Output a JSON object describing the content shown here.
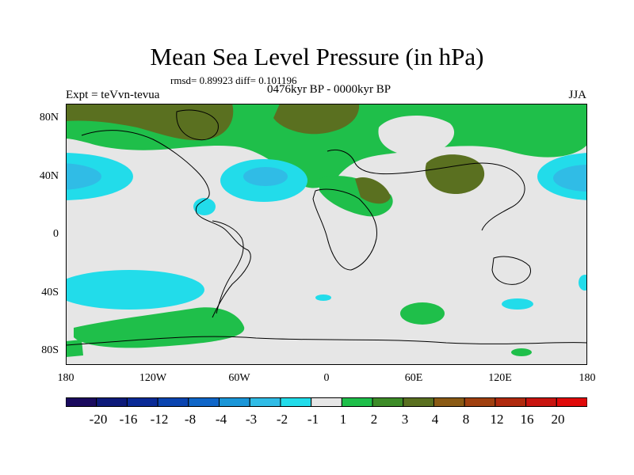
{
  "title": "Mean Sea Level Pressure (in hPa)",
  "stats": "rmsd= 0.89923 diff= 0.101196",
  "period": "0476kyr BP - 0000kyr BP",
  "experiment": "Expt = teVvn-tevua",
  "season": "JJA",
  "lat_labels": [
    "80N",
    "40N",
    "0",
    "40S",
    "80S"
  ],
  "lon_labels": [
    "180",
    "120W",
    "60W",
    "0",
    "60E",
    "120E",
    "180"
  ],
  "colorbar": {
    "labels": [
      "-20",
      "-16",
      "-12",
      "-8",
      "-4",
      "-3",
      "-2",
      "-1",
      "1",
      "2",
      "3",
      "4",
      "8",
      "12",
      "16",
      "20"
    ],
    "colors": [
      "#1a0a5e",
      "#0d1a7a",
      "#0a2a96",
      "#0a44b0",
      "#1066c8",
      "#1a96d8",
      "#30bce6",
      "#22dcea",
      "#e6e6e6",
      "#1fbf4a",
      "#3d8c28",
      "#5a7020",
      "#8a5a14",
      "#a04010",
      "#b02a0e",
      "#c81410",
      "#e00a0a"
    ]
  },
  "map_colors": {
    "neutral": "#e6e6e6",
    "pos1": "#1fbf4a",
    "pos2": "#5a7020",
    "neg1": "#22dcea",
    "neg2": "#30bce6",
    "neg3": "#1066c8"
  }
}
